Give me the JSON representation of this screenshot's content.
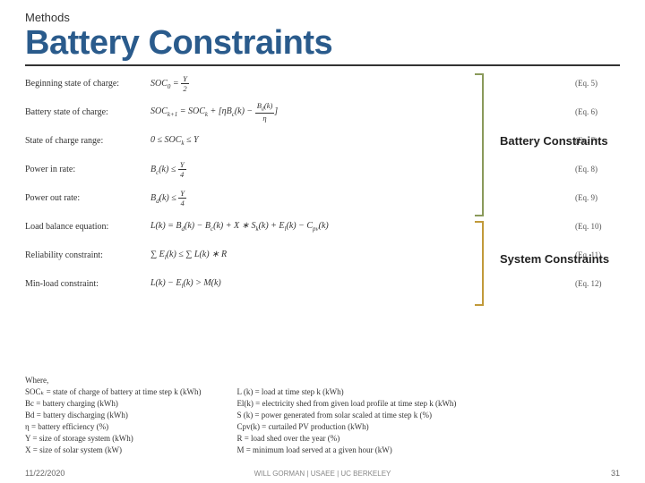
{
  "header": {
    "overline": "Methods",
    "title": "Battery Constraints"
  },
  "equations": [
    {
      "label": "Beginning state of charge:",
      "formula_html": "SOC<sub>0</sub> = <span class='frac'><span class='num'>Y</span><span class='den'>2</span></span>",
      "num": "(Eq. 5)"
    },
    {
      "label": "Battery state of charge:",
      "formula_html": "SOC<sub>k+1</sub> = SOC<sub>k</sub> + [ηB<sub>c</sub>(k) − <span class='frac'><span class='num'>B<sub>d</sub>(k)</span><span class='den'>η</span></span>]",
      "num": "(Eq. 6)"
    },
    {
      "label": "State of charge range:",
      "formula_html": "0 ≤ SOC<sub>k</sub> ≤ Y",
      "num": "(Eq. 7)"
    },
    {
      "label": "Power in rate:",
      "formula_html": "B<sub>c</sub>(k) ≤ <span class='frac'><span class='num'>Y</span><span class='den'>4</span></span>",
      "num": "(Eq. 8)"
    },
    {
      "label": "Power out rate:",
      "formula_html": "B<sub>d</sub>(k) ≤ <span class='frac'><span class='num'>Y</span><span class='den'>4</span></span>",
      "num": "(Eq. 9)"
    },
    {
      "label": "Load balance equation:",
      "formula_html": "L(k) = B<sub>d</sub>(k) − B<sub>c</sub>(k) + X ∗ S<sub>k</sub>(k) + E<sub>l</sub>(k) − C<sub>pv</sub>(k)",
      "num": "(Eq. 10)"
    },
    {
      "label": "Reliability constraint:",
      "formula_html": "∑ E<sub>l</sub>(k) ≤ ∑ L(k) ∗ R",
      "num": "(Eq. 11)"
    },
    {
      "label": "Min-load constraint:",
      "formula_html": "L(k) − E<sub>l</sub>(k) > M(k)",
      "num": "(Eq. 12)"
    }
  ],
  "brackets": {
    "battery_label": "Battery Constraints",
    "system_label": "System Constraints"
  },
  "where": {
    "heading": "Where,",
    "col1": [
      "SOCₖ = state of charge of battery at time step k (kWh)",
      "Bc = battery charging (kWh)",
      "Bd = battery discharging (kWh)",
      "η = battery efficiency (%)",
      "Y = size of storage system (kWh)",
      "X = size of solar system (kW)"
    ],
    "col2": [
      "L (k) = load at time step k (kWh)",
      "El(k) = electricity shed from given load profile at time step k (kWh)",
      "S (k) = power generated from solar scaled at time step k (%)",
      "Cpv(k) = curtailed PV production (kWh)",
      "R = load shed over the year (%)",
      "M = minimum load served at a given hour (kW)"
    ]
  },
  "footer": {
    "date": "11/22/2020",
    "center": "WILL GORMAN | USAEE | UC BERKELEY",
    "page": "31"
  },
  "colors": {
    "title": "#2a5b8c",
    "battery_bracket": "#8a9a5b",
    "system_bracket": "#c19a3a"
  }
}
